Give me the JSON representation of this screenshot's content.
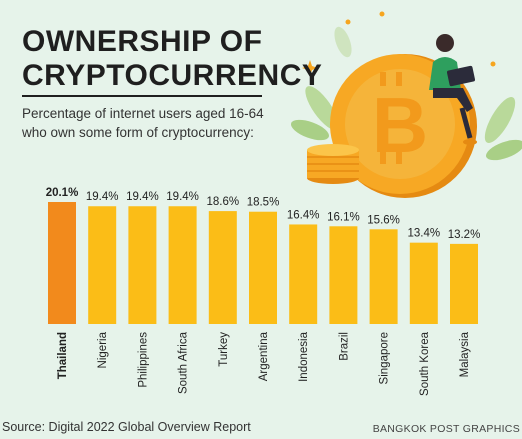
{
  "title_line1": "OWNERSHIP OF",
  "title_line2": "CRYPTOCURRENCY",
  "subtitle": "Percentage of internet users aged 16-64 who own some form of cryptocurrency:",
  "source": "Source: Digital 2022 Global Overview Report",
  "credit": "BANGKOK POST GRAPHICS",
  "colors": {
    "background": "#e6f3ea",
    "highlight_bar": "#f28a1c",
    "bar": "#fbbd17",
    "coin": "#f7a824",
    "coin_dark": "#e58a12",
    "leaf": "#b9d99a",
    "shirt": "#2e9f5e",
    "laptop": "#2b2b3a"
  },
  "chart_data": {
    "type": "bar",
    "categories": [
      "Thailand",
      "Nigeria",
      "Philippines",
      "South Africa",
      "Turkey",
      "Argentina",
      "Indonesia",
      "Brazil",
      "Singapore",
      "South Korea",
      "Malaysia"
    ],
    "values": [
      20.1,
      19.4,
      19.4,
      19.4,
      18.6,
      18.5,
      16.4,
      16.1,
      15.6,
      13.4,
      13.2
    ],
    "value_labels": [
      "20.1%",
      "19.4%",
      "19.4%",
      "19.4%",
      "18.6%",
      "18.5%",
      "16.4%",
      "16.1%",
      "15.6%",
      "13.4%",
      "13.2%"
    ],
    "highlight": "Thailand",
    "title": "OWNERSHIP OF CRYPTOCURRENCY",
    "xlabel": "",
    "ylabel": "",
    "ylim": [
      0,
      20.1
    ],
    "grid": false,
    "legend": "none"
  }
}
